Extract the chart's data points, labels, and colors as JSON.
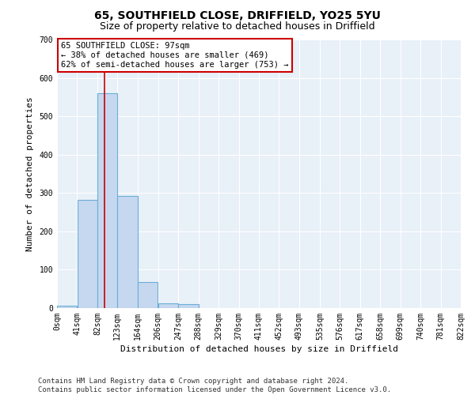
{
  "title": "65, SOUTHFIELD CLOSE, DRIFFIELD, YO25 5YU",
  "subtitle": "Size of property relative to detached houses in Driffield",
  "xlabel": "Distribution of detached houses by size in Driffield",
  "ylabel": "Number of detached properties",
  "bin_edges": [
    0,
    41,
    82,
    123,
    164,
    206,
    247,
    288,
    329,
    370,
    411,
    452,
    493,
    535,
    576,
    617,
    658,
    699,
    740,
    781,
    822
  ],
  "bar_heights": [
    7,
    283,
    560,
    293,
    68,
    13,
    10,
    0,
    0,
    0,
    0,
    0,
    0,
    0,
    0,
    0,
    0,
    0,
    0,
    0
  ],
  "bar_color": "#c5d8ef",
  "bar_edgecolor": "#6baed6",
  "bar_linewidth": 0.8,
  "red_line_x": 97,
  "annotation_title": "65 SOUTHFIELD CLOSE: 97sqm",
  "annotation_line1": "← 38% of detached houses are smaller (469)",
  "annotation_line2": "62% of semi-detached houses are larger (753) →",
  "annotation_box_color": "#ffffff",
  "annotation_box_edgecolor": "#cc0000",
  "ylim": [
    0,
    700
  ],
  "yticks": [
    0,
    100,
    200,
    300,
    400,
    500,
    600,
    700
  ],
  "plot_background_color": "#e8f0f8",
  "grid_color": "#ffffff",
  "footer_line1": "Contains HM Land Registry data © Crown copyright and database right 2024.",
  "footer_line2": "Contains public sector information licensed under the Open Government Licence v3.0.",
  "title_fontsize": 10,
  "subtitle_fontsize": 9,
  "xlabel_fontsize": 8,
  "ylabel_fontsize": 8,
  "tick_fontsize": 7,
  "annotation_fontsize": 7.5,
  "footer_fontsize": 6.5
}
